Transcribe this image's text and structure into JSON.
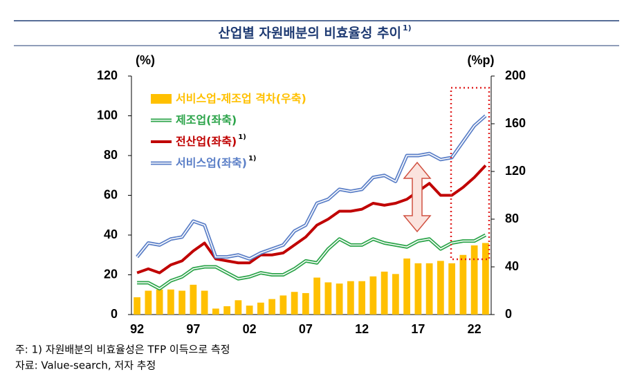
{
  "chart_data": {
    "type": "bar_line",
    "title": "산업별 자원배분의 비효율성 추이",
    "title_note": "1)",
    "y_label": "(%)",
    "y2_label": "(%p)",
    "categories": [
      "92",
      null,
      null,
      null,
      null,
      "97",
      null,
      null,
      null,
      null,
      "02",
      null,
      null,
      null,
      null,
      "07",
      null,
      null,
      null,
      null,
      "12",
      null,
      null,
      null,
      null,
      "17",
      null,
      null,
      null,
      null,
      "22",
      null
    ],
    "ylim": [
      0,
      120
    ],
    "yticks": [
      0,
      20,
      40,
      60,
      80,
      100,
      120
    ],
    "y2lim": [
      0,
      200
    ],
    "y2ticks": [
      0,
      40,
      80,
      120,
      160,
      200
    ],
    "series": [
      {
        "name": "서비스업-제조업 격차(우축)",
        "type": "bar",
        "axis": "y2",
        "color": "#ffc000",
        "values": [
          14.5,
          20,
          21,
          21,
          20,
          25,
          20,
          5,
          7,
          12,
          7.5,
          10,
          13,
          16,
          19,
          18,
          31,
          27,
          26,
          28,
          28,
          32,
          36,
          34,
          47,
          43,
          43,
          45,
          43,
          50,
          58,
          60
        ]
      },
      {
        "name": "제조업(좌축)",
        "type": "line",
        "style": "double",
        "color": "#2ca44a",
        "values": [
          16,
          16,
          13,
          17,
          19,
          23,
          24,
          24,
          21,
          18,
          19,
          21,
          20,
          20,
          23,
          27,
          26,
          33,
          38,
          35,
          35,
          38,
          36,
          35,
          34,
          37,
          38,
          33,
          36,
          37,
          37,
          40
        ]
      },
      {
        "name": "전산업(좌축)",
        "name_note": "1)",
        "type": "line",
        "style": "solid",
        "color": "#c00000",
        "values": [
          21,
          23,
          21,
          25,
          27,
          32,
          36,
          28,
          27,
          26,
          26,
          30,
          30,
          31,
          35,
          39,
          45,
          48,
          52,
          52,
          53,
          56,
          55,
          56,
          58,
          62,
          66,
          60,
          60,
          64,
          69,
          75
        ]
      },
      {
        "name": "서비스업(좌축)",
        "name_note": "1)",
        "type": "line",
        "style": "double",
        "color": "#5b7fc7",
        "values": [
          29,
          36,
          35,
          38,
          39,
          47,
          45,
          29,
          29,
          30,
          28,
          31,
          33,
          35,
          42,
          45,
          56,
          58,
          63,
          62,
          63,
          69,
          70,
          67,
          80,
          80,
          81,
          78,
          79,
          87,
          95,
          100
        ]
      }
    ]
  },
  "footnotes": [
    "주: 1) 자원배분의 비효율성은 TFP 이득으로 측정",
    "자료: Value-search, 저자 추정"
  ]
}
